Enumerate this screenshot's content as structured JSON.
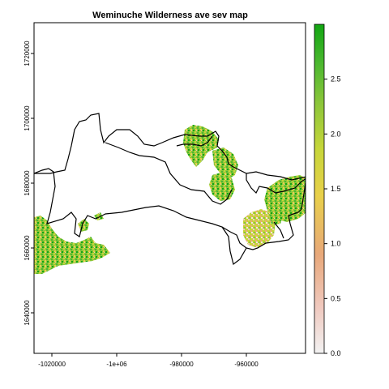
{
  "title": "Weminuche Wilderness ave sev map",
  "x_ticks": [
    "-1020000",
    "-1e+06",
    "-980000",
    "-960000"
  ],
  "y_ticks": [
    "1720000",
    "1700000",
    "1680000",
    "1660000",
    "1640000"
  ],
  "legend": {
    "ticks": [
      "0.0",
      "0.5",
      "1.0",
      "1.5",
      "2.0",
      "2.5"
    ],
    "tick_values": [
      0.0,
      0.5,
      1.0,
      1.5,
      2.0,
      2.5
    ],
    "min": 0.0,
    "max": 3.0,
    "colors": [
      "#f2f2f2",
      "#f0c9bf",
      "#e8a87a",
      "#e8d04a",
      "#c7d63a",
      "#8cc63a",
      "#4cb830",
      "#12a612"
    ]
  },
  "colors": {
    "boundary": "#000000",
    "frame": "#000000"
  }
}
